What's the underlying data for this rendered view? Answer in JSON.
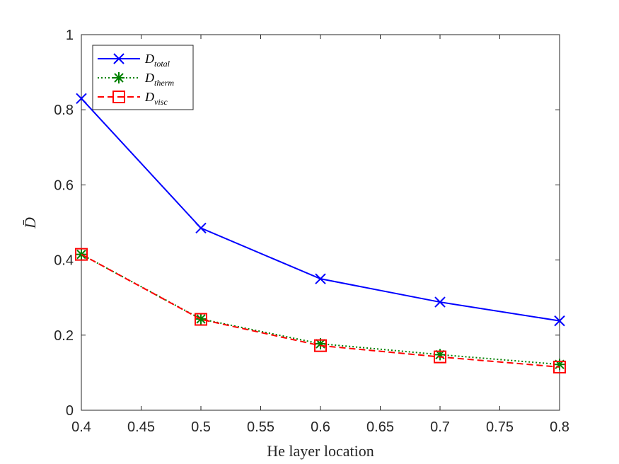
{
  "chart_data": {
    "type": "line",
    "xlabel": "He layer location",
    "ylabel": "D̄",
    "xlim": [
      0.4,
      0.8
    ],
    "ylim": [
      0,
      1
    ],
    "xticks": [
      "0.4",
      "0.45",
      "0.5",
      "0.55",
      "0.6",
      "0.65",
      "0.7",
      "0.75",
      "0.8"
    ],
    "yticks": [
      "0",
      "0.2",
      "0.4",
      "0.6",
      "0.8",
      "1"
    ],
    "grid": false,
    "legend_position": "top-left",
    "x": [
      0.4,
      0.5,
      0.6,
      0.7,
      0.8
    ],
    "series": [
      {
        "name": "D",
        "subscript": "total",
        "values": [
          0.83,
          0.485,
          0.35,
          0.288,
          0.238
        ],
        "color": "#0000ff",
        "line": "solid",
        "marker": "x"
      },
      {
        "name": "D",
        "subscript": "therm",
        "values": [
          0.415,
          0.243,
          0.177,
          0.148,
          0.122
        ],
        "color": "#008000",
        "line": "dotted",
        "marker": "asterisk"
      },
      {
        "name": "D",
        "subscript": "visc",
        "values": [
          0.415,
          0.242,
          0.172,
          0.142,
          0.115
        ],
        "color": "#ff0000",
        "line": "dashed",
        "marker": "square"
      }
    ]
  }
}
